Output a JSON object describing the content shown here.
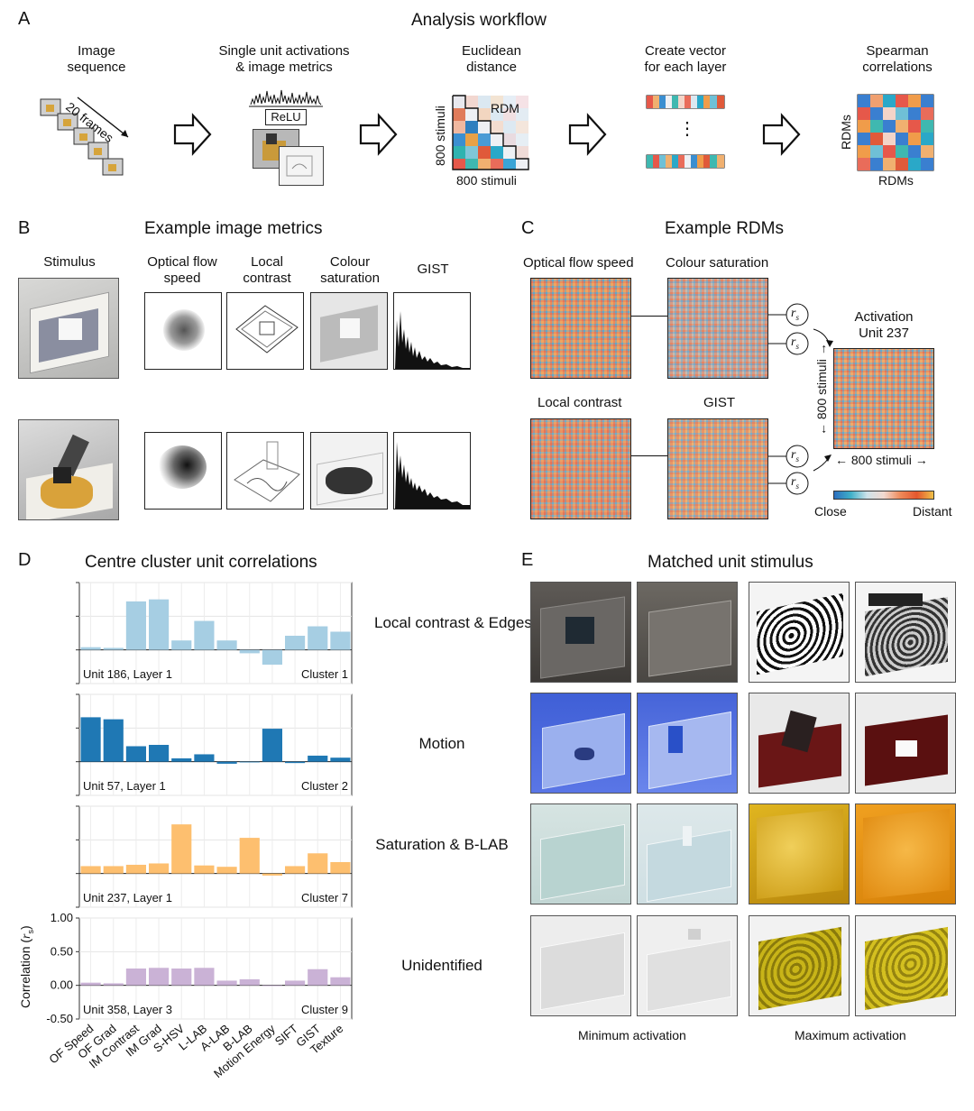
{
  "panel_a": {
    "letter": "A",
    "title": "Analysis workflow",
    "steps": [
      {
        "line1": "Image",
        "line2": "sequence"
      },
      {
        "line1": "Single unit activations",
        "line2": "& image metrics"
      },
      {
        "line1": "Euclidean",
        "line2": "distance"
      },
      {
        "line1": "Create vector",
        "line2": "for each layer"
      },
      {
        "line1": "Spearman",
        "line2": "correlations"
      }
    ],
    "frames_label": "20 frames",
    "relu_label": "ReLU",
    "rdm_label": "RDM",
    "stimuli_y": "800 stimuli",
    "stimuli_x": "800 stimuli",
    "dots": "⋮",
    "rdms_y": "RDMs",
    "rdms_x": "RDMs"
  },
  "panel_b": {
    "letter": "B",
    "title": "Example image metrics",
    "columns": [
      {
        "line1": "Stimulus",
        "line2": ""
      },
      {
        "line1": "Optical flow",
        "line2": "speed"
      },
      {
        "line1": "Local",
        "line2": "contrast"
      },
      {
        "line1": "Colour",
        "line2": "saturation"
      },
      {
        "line1": "GIST",
        "line2": ""
      }
    ]
  },
  "panel_c": {
    "letter": "C",
    "title": "Example RDMs",
    "rdm_titles": [
      "Optical flow speed",
      "Colour saturation",
      "Local contrast",
      "GIST"
    ],
    "rs_symbol": "r",
    "rs_sub": "s",
    "activation_line1": "Activation",
    "activation_line2": "Unit 237",
    "stimuli_y": "800 stimuli",
    "stimuli_x": "800 stimuli",
    "colorbar_low": "Close",
    "colorbar_high": "Distant"
  },
  "panel_d": {
    "letter": "D",
    "title": "Centre cluster unit correlations",
    "ylabel_main": "Correlation (",
    "ylabel_sym": "r",
    "ylabel_sub": "s",
    "ylabel_end": ")",
    "yticks": [
      "1.00",
      "0.50",
      "0.00",
      "-0.50"
    ],
    "categories": [
      "OF Speed",
      "OF Grad",
      "IM Contrast",
      "IM Grad",
      "S-HSV",
      "L-LAB",
      "A-LAB",
      "B-LAB",
      "Motion Energy",
      "SIFT",
      "GIST",
      "Texture"
    ]
  },
  "chart_data": [
    {
      "type": "bar",
      "title": "Unit 186, Layer 1",
      "cluster": "Cluster 1",
      "category_label": "Local contrast & Edges",
      "color": "#a6cee3",
      "categories": [
        "OF Speed",
        "OF Grad",
        "IM Contrast",
        "IM Grad",
        "S-HSV",
        "L-LAB",
        "A-LAB",
        "B-LAB",
        "Motion Energy",
        "SIFT",
        "GIST",
        "Texture"
      ],
      "values": [
        0.04,
        0.03,
        0.72,
        0.75,
        0.14,
        0.43,
        0.14,
        -0.05,
        -0.22,
        0.21,
        0.35,
        0.27
      ],
      "ylim": [
        -0.5,
        1.0
      ]
    },
    {
      "type": "bar",
      "title": "Unit 57, Layer 1",
      "cluster": "Cluster 2",
      "category_label": "Motion",
      "color": "#1f78b4",
      "categories": [
        "OF Speed",
        "OF Grad",
        "IM Contrast",
        "IM Grad",
        "S-HSV",
        "L-LAB",
        "A-LAB",
        "B-LAB",
        "Motion Energy",
        "SIFT",
        "GIST",
        "Texture"
      ],
      "values": [
        0.66,
        0.63,
        0.23,
        0.25,
        0.05,
        0.11,
        -0.03,
        -0.01,
        0.49,
        -0.02,
        0.09,
        0.06
      ],
      "ylim": [
        -0.5,
        1.0
      ]
    },
    {
      "type": "bar",
      "title": "Unit 237, Layer 1",
      "cluster": "Cluster 7",
      "category_label": "Saturation & B-LAB",
      "color": "#fdbf6f",
      "categories": [
        "OF Speed",
        "OF Grad",
        "IM Contrast",
        "IM Grad",
        "S-HSV",
        "L-LAB",
        "A-LAB",
        "B-LAB",
        "Motion Energy",
        "SIFT",
        "GIST",
        "Texture"
      ],
      "values": [
        0.11,
        0.11,
        0.13,
        0.15,
        0.73,
        0.12,
        0.1,
        0.53,
        -0.03,
        0.11,
        0.3,
        0.17
      ],
      "ylim": [
        -0.5,
        1.0
      ]
    },
    {
      "type": "bar",
      "title": "Unit 358, Layer 3",
      "cluster": "Cluster 9",
      "category_label": "Unidentified",
      "color": "#cab2d6",
      "categories": [
        "OF Speed",
        "OF Grad",
        "IM Contrast",
        "IM Grad",
        "S-HSV",
        "L-LAB",
        "A-LAB",
        "B-LAB",
        "Motion Energy",
        "SIFT",
        "GIST",
        "Texture"
      ],
      "values": [
        0.04,
        0.03,
        0.25,
        0.26,
        0.25,
        0.26,
        0.07,
        0.09,
        -0.01,
        0.07,
        0.24,
        0.12
      ],
      "ylim": [
        -0.5,
        1.0
      ]
    }
  ],
  "panel_e": {
    "letter": "E",
    "title": "Matched unit stimulus",
    "min_label": "Minimum activation",
    "max_label": "Maximum activation"
  },
  "colors": {
    "cluster1": "#a6cee3",
    "cluster2": "#1f78b4",
    "cluster7": "#fdbf6f",
    "cluster9": "#cab2d6"
  }
}
